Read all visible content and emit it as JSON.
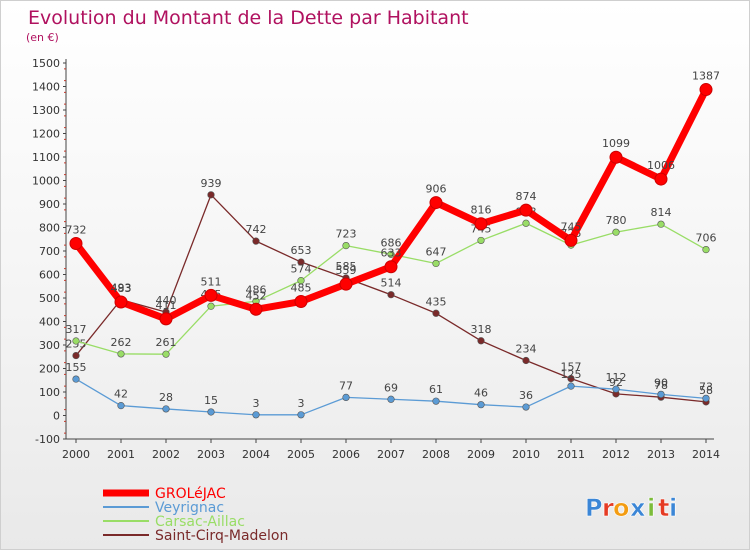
{
  "chart_data": {
    "type": "line",
    "title": "Evolution du Montant de la Dette par Habitant",
    "subtitle": "(en €)",
    "ylim": [
      -100,
      1500
    ],
    "yticks": [
      -100,
      0,
      100,
      200,
      300,
      400,
      500,
      600,
      700,
      800,
      900,
      1000,
      1100,
      1200,
      1300,
      1400,
      1500
    ],
    "x": [
      "2000",
      "2001",
      "2002",
      "2003",
      "2004",
      "2005",
      "2006",
      "2007",
      "2008",
      "2009",
      "2010",
      "2011",
      "2012",
      "2013",
      "2014"
    ],
    "grid": false,
    "legend_position": "bottom-left",
    "series": [
      {
        "name": "GROLéJAC",
        "color": "#ff0000",
        "values": [
          732,
          483,
          411,
          511,
          452,
          485,
          559,
          633,
          906,
          816,
          874,
          745,
          1099,
          1006,
          1387
        ]
      },
      {
        "name": "Veyrignac",
        "color": "#5b9bd5",
        "values": [
          155,
          42,
          28,
          15,
          3,
          3,
          77,
          69,
          61,
          46,
          36,
          125,
          112,
          90,
          73
        ]
      },
      {
        "name": "Carsac-Aillac",
        "color": "#99dd66",
        "values": [
          317,
          262,
          261,
          465,
          486,
          574,
          723,
          686,
          647,
          745,
          818,
          725,
          780,
          814,
          706
        ]
      },
      {
        "name": "Saint-Cirq-Madelon",
        "color": "#7a2a2a",
        "values": [
          255,
          493,
          440,
          939,
          742,
          653,
          585,
          514,
          435,
          318,
          234,
          157,
          92,
          78,
          58
        ]
      }
    ]
  },
  "logo": {
    "letters": [
      "P",
      "r",
      "o",
      "x",
      "i",
      "t",
      "i"
    ],
    "colors": [
      "#3b86d6",
      "#e53b24",
      "#f39c12",
      "#3b86d6",
      "#7cbc3a",
      "#e53b24",
      "#3b86d6"
    ]
  }
}
